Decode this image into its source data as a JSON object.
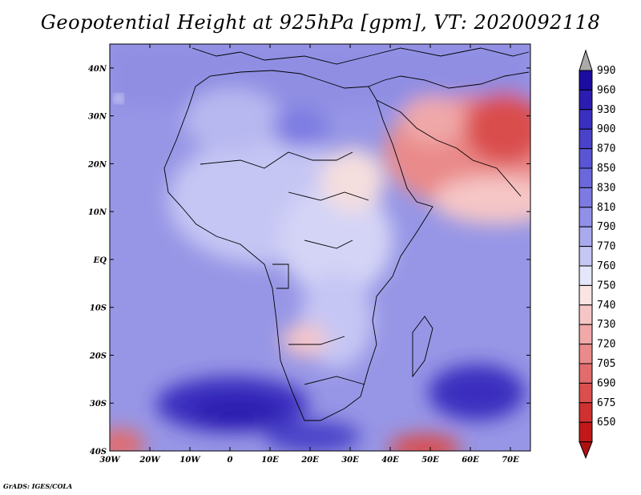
{
  "title": "Geopotential Height at 925hPa [gpm], VT: 2020092118",
  "footer": "GrADS: IGES/COLA",
  "map": {
    "lon_labels": [
      "30W",
      "20W",
      "10W",
      "0",
      "10E",
      "20E",
      "30E",
      "40E",
      "50E",
      "60E",
      "70E"
    ],
    "lat_labels": [
      "40N",
      "30N",
      "20N",
      "10N",
      "EQ",
      "10S",
      "20S",
      "30S",
      "40S"
    ],
    "lon_range": [
      -30,
      75
    ],
    "lat_range": [
      -40,
      45
    ]
  },
  "colorbar": {
    "levels": [
      "990",
      "960",
      "930",
      "900",
      "870",
      "850",
      "830",
      "810",
      "790",
      "770",
      "760",
      "750",
      "740",
      "730",
      "720",
      "705",
      "690",
      "675",
      "650"
    ],
    "colors": [
      "#1c0ca0",
      "#2c1caf",
      "#3b2fbf",
      "#4a42c8",
      "#5a55d2",
      "#6b68db",
      "#7d7be2",
      "#9190e8",
      "#a9a9ee",
      "#c6c6f4",
      "#e6e6fb",
      "#fbe4e4",
      "#f6c6c6",
      "#f0a8a8",
      "#ea8a8a",
      "#e26c6c",
      "#da4e4e",
      "#cf3131",
      "#c01818"
    ],
    "top_arrow_color": "#aaaaaa",
    "bottom_arrow_color": "#b01010"
  }
}
